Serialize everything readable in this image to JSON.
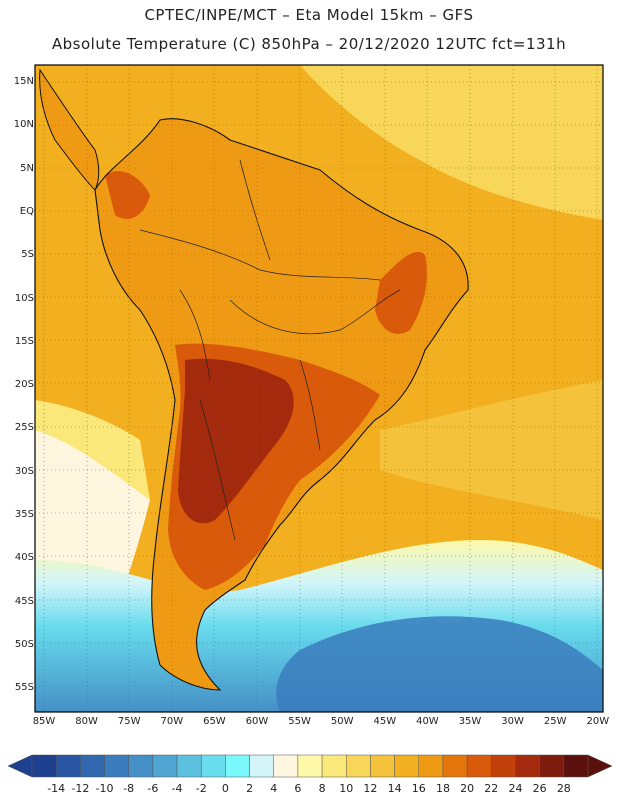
{
  "header": {
    "line1": "CPTEC/INPE/MCT –  Eta Model 15km – GFS",
    "line2": "Absolute Temperature (C) 850hPa – 20/12/2020 12UTC fct=131h"
  },
  "axes": {
    "lat_labels": [
      "15N",
      "10N",
      "5N",
      "EQ",
      "5S",
      "10S",
      "15S",
      "20S",
      "25S",
      "30S",
      "35S",
      "40S",
      "45S",
      "50S",
      "55S"
    ],
    "lon_labels": [
      "85W",
      "80W",
      "75W",
      "70W",
      "65W",
      "60W",
      "55W",
      "50W",
      "45W",
      "40W",
      "35W",
      "30W",
      "25W",
      "20W"
    ]
  },
  "colorbar": {
    "labels": [
      "-14",
      "-12",
      "-10",
      "-8",
      "-6",
      "-4",
      "-2",
      "0",
      "2",
      "4",
      "6",
      "8",
      "10",
      "12",
      "14",
      "16",
      "18",
      "20",
      "22",
      "24",
      "26",
      "28"
    ],
    "colors": [
      "#1f3f8f",
      "#2a55a3",
      "#3168b0",
      "#3a7cbd",
      "#4590c6",
      "#50a6d2",
      "#5cc0df",
      "#69dcee",
      "#7af8fb",
      "#d3f5fa",
      "#fff6e0",
      "#fdf9a8",
      "#fbe87a",
      "#f8d65a",
      "#f5c23b",
      "#f2b020",
      "#ee9a14",
      "#e5760c",
      "#d85a0a",
      "#c2400a",
      "#a32a0c",
      "#7d1c0c",
      "#5a100c"
    ]
  },
  "map": {
    "ocean_color": "#f0b21c",
    "land_color": "#e9a018",
    "hot_color": "#c8520e",
    "hottest_color": "#a8360c",
    "cold_south": "#5cc0df",
    "cold_deep": "#3a7cbd",
    "cool_color": "#fff6e0"
  }
}
